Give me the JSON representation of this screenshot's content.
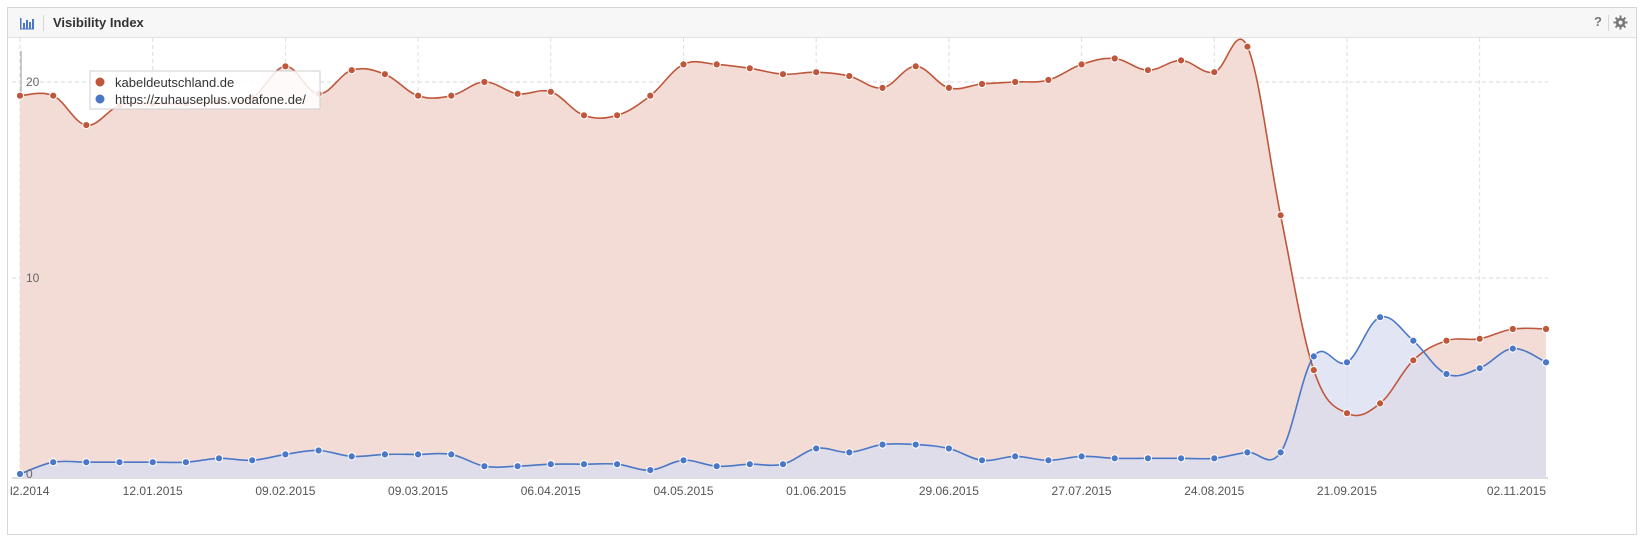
{
  "widget": {
    "title": "Visibility Index",
    "help_label": "?",
    "icons": {
      "chart": "bar-chart-icon",
      "settings": "gear-icon",
      "help": "help-icon"
    }
  },
  "chart_data": {
    "type": "area",
    "title": "Visibility Index",
    "xlabel": "",
    "ylabel": "",
    "ylim": [
      0,
      22
    ],
    "yticks": [
      0,
      10,
      20
    ],
    "grid": true,
    "legend_position": "top-left",
    "x_tick_labels": [
      "l2.2014",
      "12.01.2015",
      "09.02.2015",
      "09.03.2015",
      "06.04.2015",
      "04.05.2015",
      "01.06.2015",
      "29.06.2015",
      "27.07.2015",
      "24.08.2015",
      "21.09.2015",
      "02.11.2015"
    ],
    "x": [
      "15.12.2014",
      "22.12.2014",
      "29.12.2014",
      "05.01.2015",
      "12.01.2015",
      "19.01.2015",
      "26.01.2015",
      "02.02.2015",
      "09.02.2015",
      "16.02.2015",
      "23.02.2015",
      "02.03.2015",
      "09.03.2015",
      "16.03.2015",
      "23.03.2015",
      "30.03.2015",
      "06.04.2015",
      "13.04.2015",
      "20.04.2015",
      "27.04.2015",
      "04.05.2015",
      "11.05.2015",
      "18.05.2015",
      "25.05.2015",
      "01.06.2015",
      "08.06.2015",
      "15.06.2015",
      "22.06.2015",
      "29.06.2015",
      "06.07.2015",
      "13.07.2015",
      "20.07.2015",
      "27.07.2015",
      "03.08.2015",
      "10.08.2015",
      "17.08.2015",
      "24.08.2015",
      "31.08.2015",
      "07.09.2015",
      "14.09.2015",
      "21.09.2015",
      "28.09.2015",
      "05.10.2015",
      "12.10.2015",
      "19.10.2015",
      "26.10.2015",
      "02.11.2015"
    ],
    "series": [
      {
        "name": "kabeldeutschland.de",
        "color": "#c0563a",
        "fill": "#f2dcd5",
        "values": [
          19.3,
          19.3,
          17.8,
          18.8,
          18.9,
          18.9,
          19.0,
          19.2,
          20.8,
          19.4,
          20.6,
          20.4,
          19.3,
          19.3,
          20.0,
          19.4,
          19.5,
          18.3,
          18.3,
          19.3,
          20.9,
          20.9,
          20.7,
          20.4,
          20.5,
          20.3,
          19.7,
          20.8,
          19.7,
          19.9,
          20.0,
          20.1,
          20.9,
          21.2,
          20.6,
          21.1,
          20.5,
          21.8,
          13.2,
          5.3,
          3.1,
          3.6,
          5.8,
          6.8,
          6.9,
          7.4,
          7.4
        ]
      },
      {
        "name": "https://zuhauseplus.vodafone.de/",
        "color": "#4a77c7",
        "fill": "#d8ddf0",
        "values": [
          0.0,
          0.6,
          0.6,
          0.6,
          0.6,
          0.6,
          0.8,
          0.7,
          1.0,
          1.2,
          0.9,
          1.0,
          1.0,
          1.0,
          0.4,
          0.4,
          0.5,
          0.5,
          0.5,
          0.2,
          0.7,
          0.4,
          0.5,
          0.5,
          1.3,
          1.1,
          1.5,
          1.5,
          1.3,
          0.7,
          0.9,
          0.7,
          0.9,
          0.8,
          0.8,
          0.8,
          0.8,
          1.1,
          1.1,
          6.0,
          5.7,
          8.0,
          6.8,
          5.1,
          5.4,
          6.4,
          5.7
        ]
      }
    ]
  }
}
